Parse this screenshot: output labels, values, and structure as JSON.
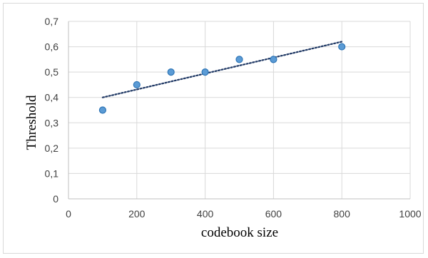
{
  "chart_data": {
    "type": "scatter",
    "title": "",
    "xlabel": "codebook size",
    "ylabel": "Threshold",
    "xlim": [
      0,
      1000
    ],
    "ylim": [
      0,
      0.7
    ],
    "x_ticks": [
      0,
      200,
      400,
      600,
      800,
      1000
    ],
    "y_ticks": [
      0,
      0.1,
      0.2,
      0.3,
      0.4,
      0.5,
      0.6,
      0.7
    ],
    "y_tick_labels": [
      "0",
      "0,1",
      "0,2",
      "0,3",
      "0,4",
      "0,5",
      "0,6",
      "0,7"
    ],
    "x_tick_labels": [
      "0",
      "200",
      "400",
      "600",
      "800",
      "1000"
    ],
    "grid": true,
    "legend": "none",
    "series": [
      {
        "x": [
          100,
          200,
          300,
          400,
          500,
          600,
          800
        ],
        "y": [
          0.35,
          0.45,
          0.5,
          0.5,
          0.55,
          0.55,
          0.6
        ],
        "marker_color": "#5b9bd5",
        "marker_edge_color": "#2e75b6"
      }
    ],
    "trendline": {
      "type": "linear",
      "x": [
        100,
        800
      ],
      "y": [
        0.4,
        0.62
      ],
      "style": "dotted",
      "color": "#1f3864"
    }
  }
}
